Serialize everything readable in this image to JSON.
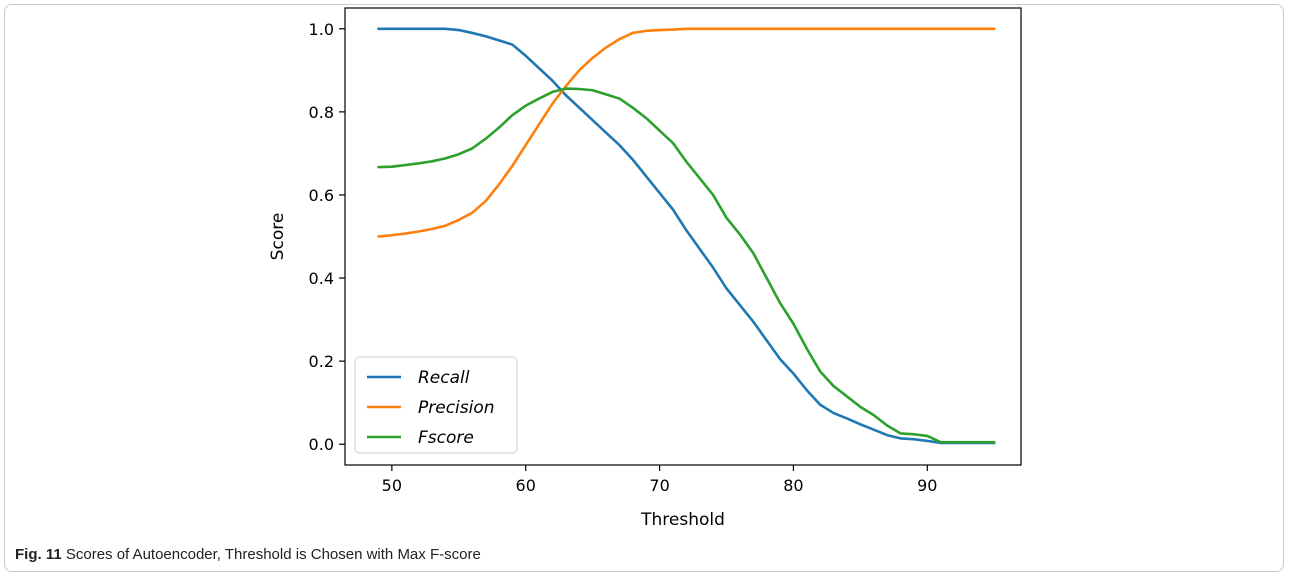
{
  "figure": {
    "caption_label": "Fig. 11",
    "caption_text": "Scores of Autoencoder, Threshold is Chosen with Max F-score"
  },
  "chart_data": {
    "type": "line",
    "xlabel": "Threshold",
    "ylabel": "Score",
    "xlim": [
      46.5,
      97
    ],
    "ylim": [
      -0.05,
      1.05
    ],
    "xticks": [
      50,
      60,
      70,
      80,
      90
    ],
    "yticks": [
      0.0,
      0.2,
      0.4,
      0.6,
      0.8,
      1.0
    ],
    "ytick_labels": [
      "0.0",
      "0.2",
      "0.4",
      "0.6",
      "0.8",
      "1.0"
    ],
    "grid": false,
    "legend_position": "bottom-left",
    "series": [
      {
        "name": "Recall",
        "color": "#1f77b4",
        "x": [
          49,
          50,
          51,
          52,
          53,
          54,
          55,
          56,
          57,
          58,
          59,
          60,
          61,
          62,
          63,
          64,
          65,
          66,
          67,
          68,
          69,
          70,
          71,
          72,
          73,
          74,
          75,
          76,
          77,
          78,
          79,
          80,
          81,
          82,
          83,
          84,
          85,
          86,
          87,
          88,
          89,
          90,
          91,
          92,
          93,
          94,
          95
        ],
        "y": [
          1.0,
          1.0,
          1.0,
          1.0,
          1.0,
          1.0,
          0.997,
          0.99,
          0.982,
          0.972,
          0.962,
          0.935,
          0.905,
          0.875,
          0.84,
          0.81,
          0.78,
          0.75,
          0.72,
          0.685,
          0.645,
          0.605,
          0.565,
          0.515,
          0.47,
          0.425,
          0.375,
          0.335,
          0.295,
          0.25,
          0.205,
          0.17,
          0.13,
          0.095,
          0.075,
          0.062,
          0.048,
          0.035,
          0.022,
          0.014,
          0.012,
          0.008,
          0.003,
          0.003,
          0.003,
          0.003,
          0.003
        ]
      },
      {
        "name": "Precision",
        "color": "#ff7f0e",
        "x": [
          49,
          50,
          51,
          52,
          53,
          54,
          55,
          56,
          57,
          58,
          59,
          60,
          61,
          62,
          63,
          64,
          65,
          66,
          67,
          68,
          69,
          70,
          71,
          72,
          73,
          74,
          75,
          80,
          85,
          90,
          95
        ],
        "y": [
          0.5,
          0.503,
          0.507,
          0.512,
          0.518,
          0.526,
          0.54,
          0.557,
          0.585,
          0.625,
          0.67,
          0.72,
          0.77,
          0.82,
          0.862,
          0.9,
          0.93,
          0.955,
          0.975,
          0.99,
          0.995,
          0.997,
          0.998,
          1.0,
          1.0,
          1.0,
          1.0,
          1.0,
          1.0,
          1.0,
          1.0
        ]
      },
      {
        "name": "Fscore",
        "color": "#2ca02c",
        "x": [
          49,
          50,
          51,
          52,
          53,
          54,
          55,
          56,
          57,
          58,
          59,
          60,
          61,
          62,
          63,
          64,
          65,
          66,
          67,
          68,
          69,
          70,
          71,
          72,
          73,
          74,
          75,
          76,
          77,
          78,
          79,
          80,
          81,
          82,
          83,
          84,
          85,
          86,
          87,
          88,
          89,
          90,
          91,
          92,
          93,
          94,
          95
        ],
        "y": [
          0.667,
          0.668,
          0.672,
          0.676,
          0.681,
          0.688,
          0.698,
          0.712,
          0.735,
          0.762,
          0.792,
          0.815,
          0.832,
          0.848,
          0.856,
          0.855,
          0.852,
          0.842,
          0.832,
          0.81,
          0.785,
          0.755,
          0.725,
          0.68,
          0.64,
          0.6,
          0.545,
          0.505,
          0.46,
          0.4,
          0.34,
          0.29,
          0.23,
          0.175,
          0.14,
          0.115,
          0.09,
          0.07,
          0.045,
          0.026,
          0.024,
          0.02,
          0.005,
          0.005,
          0.005,
          0.005,
          0.005
        ]
      }
    ]
  }
}
